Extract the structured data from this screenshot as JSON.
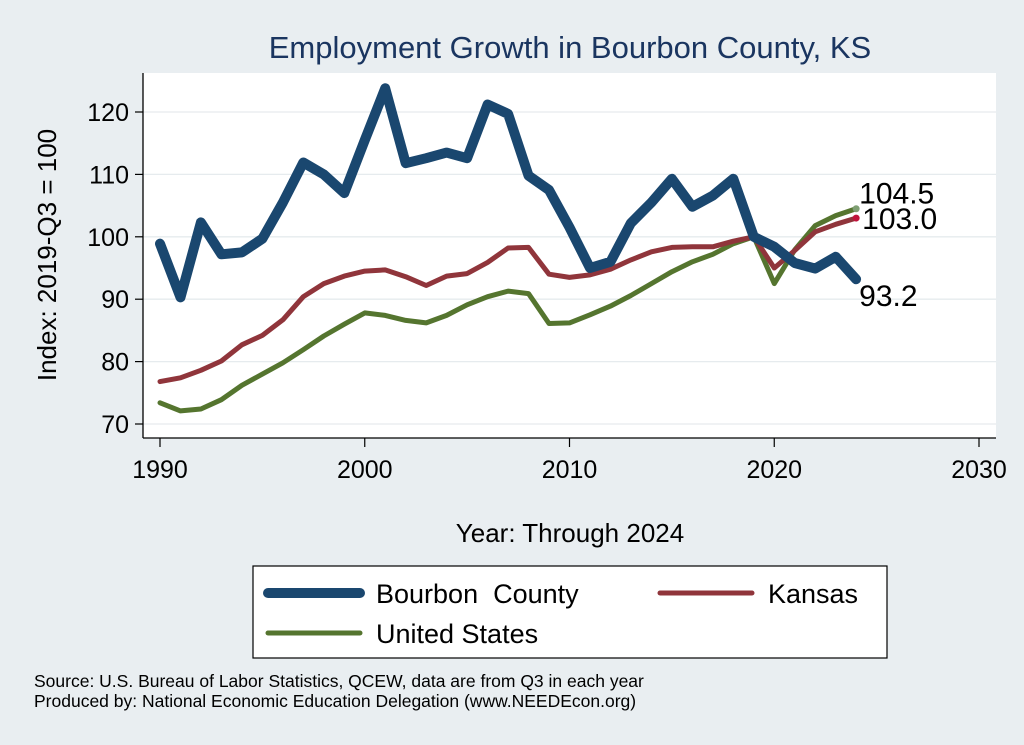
{
  "chart_data": {
    "type": "line",
    "title": "Employment Growth in Bourbon County, KS",
    "xlabel": "Year: Through 2024",
    "ylabel": "Index: 2019-Q3 = 100",
    "xlim": [
      1990,
      2030
    ],
    "ylim": [
      67,
      126
    ],
    "xticks": [
      1990,
      2000,
      2010,
      2020,
      2030
    ],
    "yticks": [
      70,
      80,
      90,
      100,
      110,
      120
    ],
    "grid": true,
    "legend_position": "bottom",
    "x": [
      1990,
      1991,
      1992,
      1993,
      1994,
      1995,
      1996,
      1997,
      1998,
      1999,
      2000,
      2001,
      2002,
      2003,
      2004,
      2005,
      2006,
      2007,
      2008,
      2009,
      2010,
      2011,
      2012,
      2013,
      2014,
      2015,
      2016,
      2017,
      2018,
      2019,
      2020,
      2021,
      2022,
      2023,
      2024
    ],
    "series": [
      {
        "name": "Bourbon  County",
        "color": "#1a476f",
        "end_label": "93.2",
        "values": [
          98.9,
          90.3,
          102.3,
          97.2,
          97.5,
          99.7,
          105.5,
          111.9,
          110.0,
          107.0,
          115.5,
          123.8,
          111.8,
          112.6,
          113.5,
          112.6,
          121.2,
          119.7,
          109.8,
          107.5,
          101.5,
          95.0,
          96.0,
          102.2,
          105.5,
          109.3,
          104.8,
          106.6,
          109.3,
          100.0,
          98.4,
          95.8,
          94.9,
          96.8,
          93.2
        ]
      },
      {
        "name": "Kansas",
        "color": "#90353b",
        "end_label": "103.0",
        "values": [
          76.8,
          77.4,
          78.6,
          80.1,
          82.7,
          84.2,
          86.7,
          90.4,
          92.5,
          93.7,
          94.5,
          94.7,
          93.6,
          92.2,
          93.7,
          94.1,
          95.9,
          98.2,
          98.3,
          94.0,
          93.5,
          93.9,
          94.8,
          96.3,
          97.6,
          98.3,
          98.4,
          98.4,
          99.3,
          100.0,
          95.0,
          97.8,
          100.8,
          102.0,
          103.0
        ]
      },
      {
        "name": "United States",
        "color": "#55752f",
        "end_label": "104.5",
        "values": [
          73.4,
          72.1,
          72.4,
          73.9,
          76.2,
          78.0,
          79.8,
          81.9,
          84.1,
          86.0,
          87.8,
          87.4,
          86.6,
          86.2,
          87.4,
          89.1,
          90.4,
          91.3,
          90.9,
          86.1,
          86.2,
          87.5,
          88.9,
          90.6,
          92.5,
          94.4,
          96.0,
          97.2,
          98.9,
          100.0,
          92.5,
          97.9,
          101.8,
          103.4,
          104.5
        ]
      }
    ],
    "source_line": "Source: U.S. Bureau of Labor Statistics, QCEW, data are from Q3 in each year",
    "produced_line": "Produced by: National Economic Education Delegation (www.NEEDEcon.org)"
  }
}
